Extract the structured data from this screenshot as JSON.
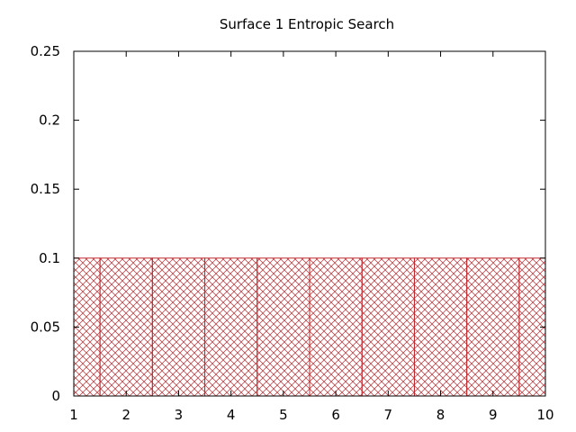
{
  "chart_data": {
    "type": "bar",
    "title": "Surface 1 Entropic Search",
    "xlabel": "",
    "ylabel": "",
    "x": [
      1,
      2,
      3,
      4,
      5,
      6,
      7,
      8,
      9,
      10
    ],
    "values": [
      0.1,
      0.1,
      0.1,
      0.1,
      0.1,
      0.1,
      0.1,
      0.1,
      0.1,
      0.1
    ],
    "xlim": [
      1,
      10
    ],
    "ylim": [
      0,
      0.25
    ],
    "x_ticks": [
      "1",
      "2",
      "3",
      "4",
      "5",
      "6",
      "7",
      "8",
      "9",
      "10"
    ],
    "y_ticks": [
      "0",
      "0.05",
      "0.1",
      "0.15",
      "0.2",
      "0.25"
    ],
    "fill": "crosshatch",
    "grid": false,
    "colors": {
      "bar": "#c0282d",
      "frame": "#000000"
    }
  }
}
